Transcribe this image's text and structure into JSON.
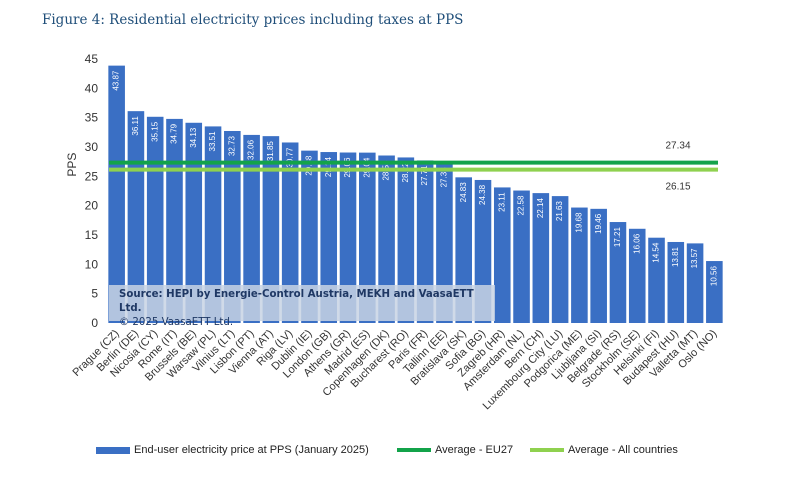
{
  "figure_title": "Figure 4: Residential electricity prices including taxes at PPS",
  "source_note": {
    "line1": "Source: HEPI by Energie-Control Austria, MEKH and VaasaETT Ltd.",
    "line2": "© 2025 VaasaETT Ltd."
  },
  "colors": {
    "bar": "#3a6fc4",
    "eu27": "#13a34a",
    "all": "#8fd14f",
    "axis_text": "#333333"
  },
  "chart_data": {
    "type": "bar",
    "title": "Residential electricity prices including taxes at PPS",
    "xlabel": "",
    "ylabel": "PPS",
    "ylim": [
      0,
      45
    ],
    "yticks": [
      0,
      5,
      10,
      15,
      20,
      25,
      30,
      35,
      40,
      45
    ],
    "grid": false,
    "categories": [
      "Prague (CZ)",
      "Berlin (DE)",
      "Nicosia (CY)",
      "Rome (IT)",
      "Brussels (BE)",
      "Warsaw (PL)",
      "Vilnius (LT)",
      "Lisbon (PT)",
      "Vienna (AT)",
      "Riga (LV)",
      "Dublin (IE)",
      "London (GB)",
      "Athens (GR)",
      "Madrid (ES)",
      "Copenhagen (DK)",
      "Bucharest (RO)",
      "Paris (FR)",
      "Tallinn (EE)",
      "Bratislava (SK)",
      "Sofia (BG)",
      "Zagreb (HR)",
      "Amsterdam (NL)",
      "Bern (CH)",
      "Luxembourg City (LU)",
      "Podgorica (ME)",
      "Ljubljana (SI)",
      "Belgrade (RS)",
      "Stockholm (SE)",
      "Helsinki (FI)",
      "Budapest (HU)",
      "Valletta (MT)",
      "Oslo (NO)"
    ],
    "values": [
      43.87,
      36.11,
      35.15,
      34.79,
      34.13,
      33.51,
      32.73,
      32.06,
      31.85,
      30.77,
      29.38,
      29.14,
      29.06,
      29.04,
      28.55,
      28.22,
      27.71,
      27.38,
      24.83,
      24.38,
      23.11,
      22.58,
      22.14,
      21.63,
      19.68,
      19.46,
      17.21,
      16.06,
      14.54,
      13.81,
      13.57,
      10.56
    ],
    "value_labels": [
      "43.87",
      "36.11",
      "35.15",
      "34.79",
      "34.13",
      "33.51",
      "32.73",
      "32.06",
      "31.85",
      "30.77",
      "29.38",
      "29.14",
      "29.06",
      "29.04",
      "28.55",
      "28.22",
      "27.71",
      "27.38",
      "24.83",
      "24.38",
      "23.11",
      "22.58",
      "22.14",
      "21.63",
      "19.68",
      "19.46",
      "17.21",
      "16.06",
      "14.54",
      "13.81",
      "13.57",
      "10.56"
    ],
    "series_name": "End-user electricity price at PPS (January 2025)",
    "reference_lines": [
      {
        "name": "Average - EU27",
        "value": 27.34,
        "label": "27.34"
      },
      {
        "name": "Average - All countries",
        "value": 26.15,
        "label": "26.15"
      }
    ],
    "legend_position": "bottom"
  }
}
